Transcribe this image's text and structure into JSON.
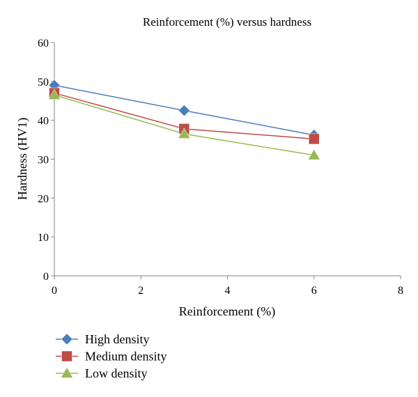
{
  "chart_data": {
    "type": "line",
    "title": "Reinforcement (%) versus hardness",
    "xlabel": "Reinforcement (%)",
    "ylabel": "Hardness (HV1)",
    "xlim": [
      0,
      8
    ],
    "ylim": [
      0,
      60
    ],
    "xticks": [
      0,
      2,
      4,
      6,
      8
    ],
    "yticks": [
      0,
      10,
      20,
      30,
      40,
      50,
      60
    ],
    "grid": false,
    "legend_position": "bottom-left",
    "series": [
      {
        "name": "High density",
        "color": "#4a7ebb",
        "marker": "diamond",
        "x": [
          0,
          3,
          6
        ],
        "y": [
          49,
          42.5,
          36.2
        ]
      },
      {
        "name": "Medium density",
        "color": "#be4b48",
        "marker": "square",
        "x": [
          0,
          3,
          6
        ],
        "y": [
          47,
          37.8,
          35.2
        ]
      },
      {
        "name": "Low density",
        "color": "#98b954",
        "marker": "triangle",
        "x": [
          0,
          3,
          6
        ],
        "y": [
          46.5,
          36.5,
          31
        ]
      }
    ]
  }
}
